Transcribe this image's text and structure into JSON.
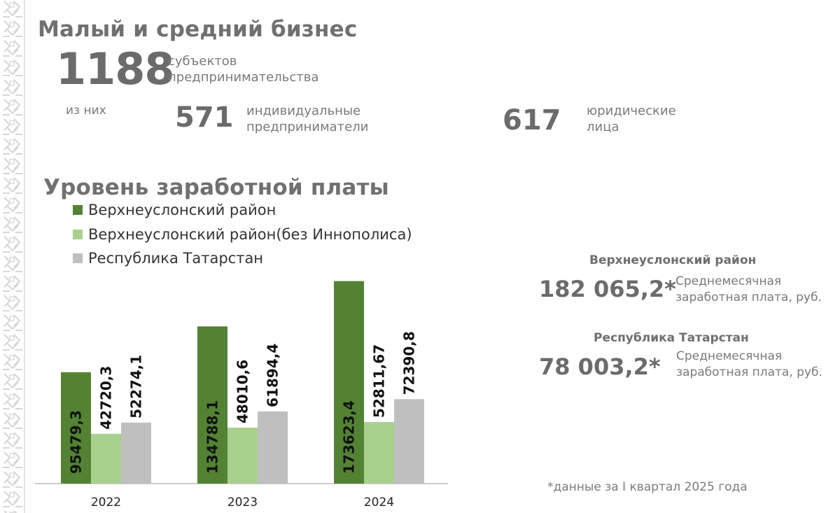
{
  "business": {
    "title": "Малый и средний бизнес",
    "total_value": "1188",
    "total_desc": "субъектов\nпредпринимательства",
    "of_them": "из них",
    "ip_value": "571",
    "ip_desc": "индивидуальные\nпредприниматели",
    "legal_value": "617",
    "legal_desc": "юридические\nлица"
  },
  "salary": {
    "title": "Уровень заработной платы",
    "stats": [
      {
        "heading": "Верхнеуслонский район",
        "value": "182 065,2*",
        "desc": "Среднемесячная\nзаработная плата, руб."
      },
      {
        "heading": "Республика Татарстан",
        "value": "78 003,2*",
        "desc": "Среднемесячная\nзаработная плата, руб."
      }
    ],
    "footnote": "*данные за I квартал 2025 года"
  },
  "chart_data": {
    "type": "bar",
    "categories": [
      "2022",
      "2023",
      "2024"
    ],
    "series": [
      {
        "name": "Верхнеуслонский район",
        "color": "#548235",
        "values": [
          95479.3,
          134788.1,
          173623.4
        ],
        "labels": [
          "95479,3",
          "134788,1",
          "173623,4"
        ]
      },
      {
        "name": "Верхнеуслонский район(без Иннополиса)",
        "color": "#a9d18e",
        "values": [
          42720.3,
          48010.6,
          52811.67
        ],
        "labels": [
          "42720,3",
          "48010,6",
          "52811,67"
        ]
      },
      {
        "name": "Республика Татарстан",
        "color": "#bfbfbf",
        "values": [
          52274.1,
          61894.4,
          72390.8
        ],
        "labels": [
          "52274,1",
          "61894,4",
          "72390,8"
        ]
      }
    ],
    "ylim": [
      0,
      180000
    ],
    "grid": false,
    "legend": "top-left"
  }
}
